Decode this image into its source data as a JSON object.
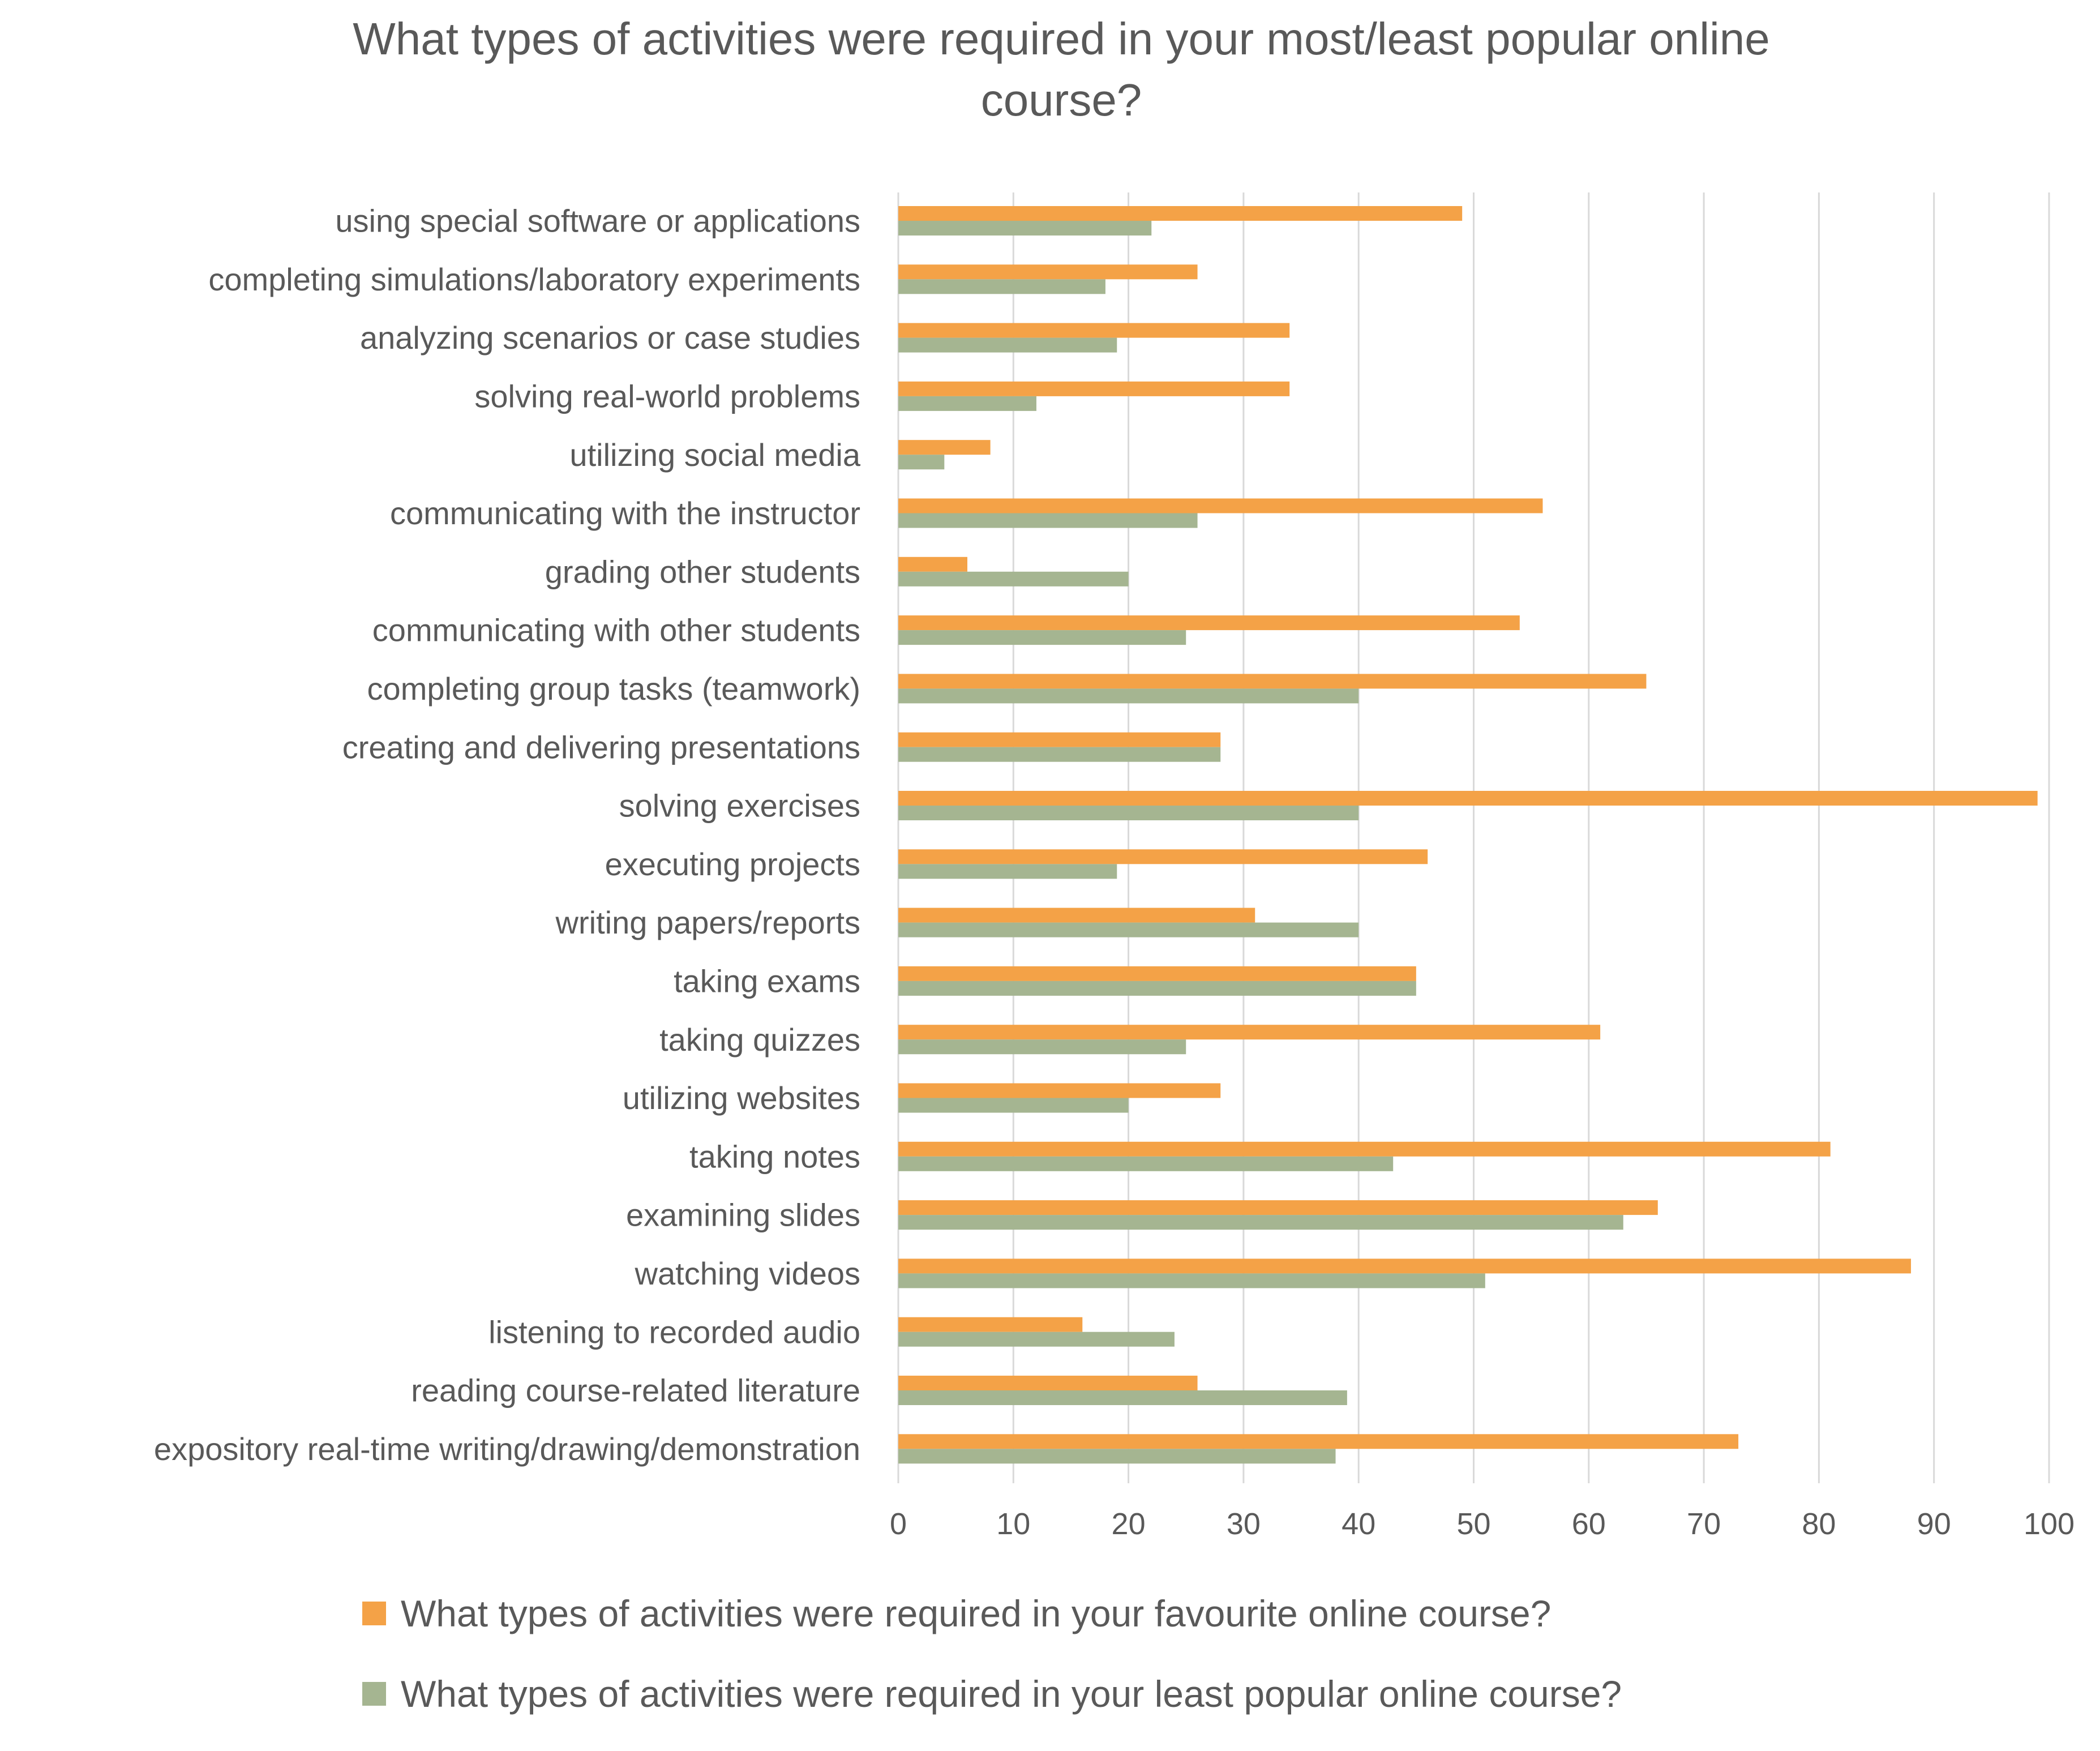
{
  "chart_data": {
    "type": "bar",
    "orientation": "horizontal",
    "title_lines": [
      "What types of activities were required in your most/least popular online",
      "course?"
    ],
    "categories": [
      "using special software or applications",
      "completing simulations/laboratory experiments",
      "analyzing scenarios or case studies",
      "solving real-world problems",
      "utilizing social media",
      "communicating with the instructor",
      "grading other students",
      "communicating with other students",
      "completing group tasks (teamwork)",
      "creating and delivering presentations",
      "solving exercises",
      "executing projects",
      "writing papers/reports",
      "taking exams",
      "taking quizzes",
      "utilizing websites",
      "taking notes",
      "examining slides",
      "watching videos",
      "listening to recorded audio",
      "reading course-related literature",
      "expository real-time writing/drawing/demonstration"
    ],
    "series": [
      {
        "name": "What types of activities were required in your favourite online course?",
        "color": "#f4a247",
        "values": [
          49,
          26,
          34,
          34,
          8,
          56,
          6,
          54,
          65,
          28,
          99,
          46,
          31,
          45,
          61,
          28,
          81,
          66,
          88,
          16,
          26,
          73
        ]
      },
      {
        "name": "What types of activities were required in your least popular online course?",
        "color": "#a5b591",
        "values": [
          22,
          18,
          19,
          12,
          4,
          26,
          20,
          25,
          40,
          28,
          40,
          19,
          40,
          45,
          25,
          20,
          43,
          63,
          51,
          24,
          39,
          38
        ]
      }
    ],
    "xlim": [
      0,
      100
    ],
    "xticks": [
      "0",
      "10",
      "20",
      "30",
      "40",
      "50",
      "60",
      "70",
      "80",
      "90",
      "100"
    ],
    "xlabel": "",
    "ylabel": "",
    "grid": "vertical",
    "legend_position": "bottom"
  }
}
